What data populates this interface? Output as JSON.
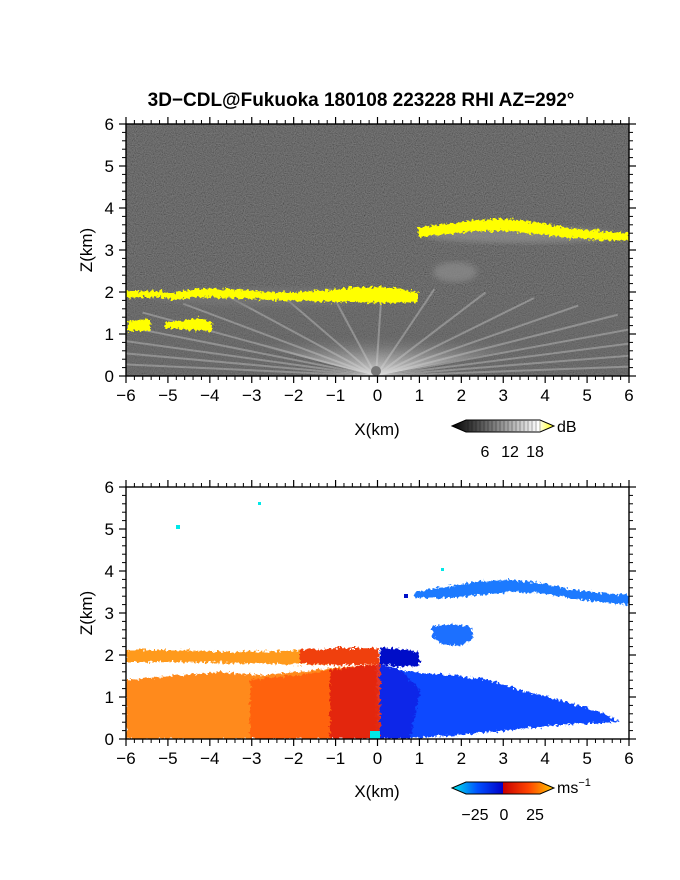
{
  "chart_data": [
    {
      "type": "heatmap",
      "title": "3D−CDL@Fukuoka 180108 223228 RHI AZ=292°",
      "xlabel": "X(km)",
      "ylabel": "Z(km)",
      "xlim": [
        -6,
        6
      ],
      "ylim": [
        0,
        6
      ],
      "x_ticks": [
        "−6",
        "−5",
        "−4",
        "−3",
        "−2",
        "−1",
        "0",
        "1",
        "2",
        "3",
        "4",
        "5",
        "6"
      ],
      "y_ticks": [
        "0",
        "1",
        "2",
        "3",
        "4",
        "5",
        "6"
      ],
      "colorbar": {
        "unit": "dB",
        "ticks": [
          "6",
          "12",
          "18"
        ],
        "range": [
          0,
          20
        ],
        "colors": [
          "#000000",
          "#ffffff",
          "#ffff00"
        ]
      },
      "background_color": "#2b2b2b",
      "highlight_color": "#ffff00",
      "features": [
        {
          "name": "upper cloud layer",
          "x": [
            1,
            6
          ],
          "z": [
            3.6,
            3.3
          ]
        },
        {
          "name": "main cloud layer",
          "x": [
            -6,
            1
          ],
          "z": [
            2.0,
            2.0
          ]
        },
        {
          "name": "low cloud layer",
          "x": [
            -6,
            -4
          ],
          "z": [
            1.2,
            1.2
          ]
        },
        {
          "name": "clear-air echo patch",
          "x": [
            1.5,
            2.5
          ],
          "z": [
            2.5,
            2.5
          ]
        }
      ]
    },
    {
      "type": "heatmap",
      "xlabel": "X(km)",
      "ylabel": "Z(km)",
      "xlim": [
        -6,
        6
      ],
      "ylim": [
        0,
        6
      ],
      "x_ticks": [
        "−6",
        "−5",
        "−4",
        "−3",
        "−2",
        "−1",
        "0",
        "1",
        "2",
        "3",
        "4",
        "5",
        "6"
      ],
      "y_ticks": [
        "0",
        "1",
        "2",
        "3",
        "4",
        "5",
        "6"
      ],
      "colorbar": {
        "unit": "ms",
        "unit_sup": "−1",
        "ticks": [
          "−25",
          "0",
          "25"
        ],
        "range": [
          -35,
          35
        ],
        "colors": [
          "#00e8e8",
          "#0050ff",
          "#0000c8",
          "#c80000",
          "#ff4400",
          "#ffc800"
        ]
      },
      "features": [
        {
          "name": "upper layer velocity",
          "x": [
            0.6,
            6
          ],
          "z": [
            3.6,
            3.3
          ],
          "velocity": -15
        },
        {
          "name": "main layer velocity west",
          "x": [
            -6,
            0
          ],
          "z": [
            2.0,
            2.0
          ],
          "velocity": 20
        },
        {
          "name": "main layer velocity east",
          "x": [
            0,
            1
          ],
          "z": [
            2.0,
            2.0
          ],
          "velocity": -30
        },
        {
          "name": "boundary layer west",
          "x": [
            -6,
            0
          ],
          "z": [
            0,
            1.3
          ],
          "velocity": 15
        },
        {
          "name": "boundary layer east",
          "x": [
            0,
            4.5
          ],
          "z": [
            0,
            1.3
          ],
          "velocity": -25
        }
      ]
    }
  ]
}
